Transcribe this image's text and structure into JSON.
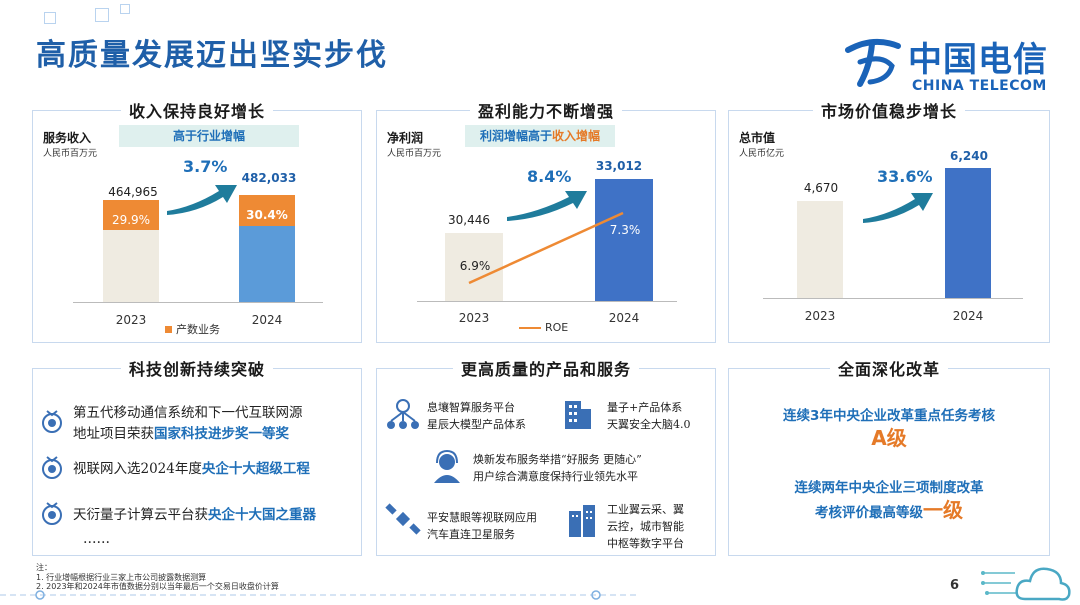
{
  "title": "高质量发展迈出坚实步伐",
  "logo": {
    "cn": "中国电信",
    "en": "CHINA TELECOM",
    "icon": "china-telecom-logo-icon",
    "color": "#1a63b8"
  },
  "panels": {
    "revenue": {
      "heading": "收入保持良好增长",
      "metric": "服务收入",
      "unit": "人民币百万元",
      "tag": "高于行业增幅",
      "growth": "3.7%",
      "years": [
        "2023",
        "2024"
      ],
      "values": [
        "464,965",
        "482,033"
      ],
      "shares": [
        "29.9%",
        "30.4%"
      ],
      "legend": "产数业务"
    },
    "profit": {
      "heading": "盈利能力不断增强",
      "metric": "净利润",
      "unit": "人民币百万元",
      "tag_a": "利润增幅高于",
      "tag_b": "收入增幅",
      "growth": "8.4%",
      "years": [
        "2023",
        "2024"
      ],
      "values": [
        "30,446",
        "33,012"
      ],
      "roe": [
        "6.9%",
        "7.3%"
      ],
      "legend": "ROE"
    },
    "market": {
      "heading": "市场价值稳步增长",
      "metric": "总市值",
      "unit": "人民币亿元",
      "growth": "33.6%",
      "years": [
        "2023",
        "2024"
      ],
      "values": [
        "4,670",
        "6,240"
      ]
    },
    "tech": {
      "heading": "科技创新持续突破",
      "items": [
        {
          "a": "第五代移动通信系统和下一代互联网源",
          "b": "地址项目荣获",
          "em": "国家科技进步奖一等奖"
        },
        {
          "a": "视联网入选2024年度",
          "em": "央企十大超级工程"
        },
        {
          "a": "天衍量子计算云平台获",
          "em": "央企十大国之重器"
        }
      ],
      "more": "……"
    },
    "service": {
      "heading": "更高质量的产品和服务",
      "items": [
        {
          "l1": "息壤智算服务平台",
          "l2": "星辰大模型产品体系",
          "icon": "ai-network-icon"
        },
        {
          "l1": "量子+产品体系",
          "l2": "天翼安全大脑4.0",
          "icon": "building-icon"
        },
        {
          "l1": "焕新发布服务举措“好服务 更随心”",
          "l2": "用户综合满意度保持行业领先水平",
          "icon": "customer-service-icon"
        },
        {
          "l1": "平安慧眼等视联网应用",
          "l2": "汽车直连卫星服务",
          "icon": "satellite-icon"
        },
        {
          "l1": "工业翼云采、翼",
          "l2": "云控，城市智能",
          "l3": "中枢等数字平台",
          "icon": "city-icon"
        }
      ]
    },
    "reform": {
      "heading": "全面深化改革",
      "r1_text": "连续3年中央企业改革重点任务考核",
      "r1_grade": "A级",
      "r2_l1": "连续两年中央企业三项制度改革",
      "r2_l2": "考核评价最高等级",
      "r2_grade": "一级"
    }
  },
  "notes": {
    "label": "注：",
    "n1": "1.     行业增幅根据行业三家上市公司披露数据测算",
    "n2": "2.     2023年和2024年市值数据分别以当年最后一个交易日收盘价计算"
  },
  "page_number": "6",
  "colors": {
    "blue": "#1f6fb8",
    "orange": "#e57a28",
    "beige": "#efebe1",
    "bar_blue_light": "#5b9bd9",
    "bar_blue_dark": "#3f72c6"
  }
}
